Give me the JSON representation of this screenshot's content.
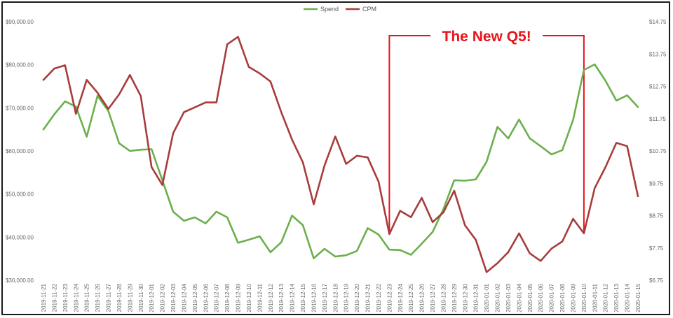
{
  "chart_data": {
    "type": "line",
    "title": "",
    "xlabel": "",
    "ylabel": "",
    "y2label": "",
    "legend_position": "top-center",
    "grid": false,
    "categories": [
      "2019-11-21",
      "2019-11-22",
      "2019-11-23",
      "2019-11-24",
      "2019-11-25",
      "2019-11-26",
      "2019-11-27",
      "2019-11-28",
      "2019-11-29",
      "2019-11-30",
      "2019-12-01",
      "2019-12-02",
      "2019-12-03",
      "2019-12-04",
      "2019-12-05",
      "2019-12-06",
      "2019-12-07",
      "2019-12-08",
      "2019-12-09",
      "2019-12-10",
      "2019-12-11",
      "2019-12-12",
      "2019-12-13",
      "2019-12-14",
      "2019-12-15",
      "2019-12-16",
      "2019-12-17",
      "2019-12-18",
      "2019-12-19",
      "2019-12-20",
      "2019-12-21",
      "2019-12-22",
      "2019-12-23",
      "2019-12-24",
      "2019-12-25",
      "2019-12-26",
      "2019-12-27",
      "2019-12-28",
      "2019-12-29",
      "2019-12-30",
      "2019-12-31",
      "2020-01-01",
      "2020-01-02",
      "2020-01-03",
      "2020-01-04",
      "2020-01-05",
      "2020-01-06",
      "2020-01-07",
      "2020-01-08",
      "2020-01-09",
      "2020-01-10",
      "2020-01-11",
      "2020-01-12",
      "2020-01-13",
      "2020-01-14",
      "2020-01-15"
    ],
    "y_left": {
      "ylim": [
        30000,
        90000
      ],
      "ticks": [
        30000,
        40000,
        50000,
        60000,
        70000,
        80000,
        90000
      ],
      "tick_labels": [
        "$30,000.00",
        "$40,000.00",
        "$50,000.00",
        "$60,000.00",
        "$70,000.00",
        "$80,000.00",
        "$90,000.00"
      ]
    },
    "y_right": {
      "ylim": [
        6.75,
        14.75
      ],
      "ticks": [
        6.75,
        7.75,
        8.75,
        9.75,
        10.75,
        11.75,
        12.75,
        13.75,
        14.75
      ],
      "tick_labels": [
        "$6.75",
        "$7.75",
        "$8.75",
        "$9.75",
        "$10.75",
        "$11.75",
        "$12.75",
        "$13.75",
        "$14.75"
      ]
    },
    "series": [
      {
        "name": "Spend",
        "color": "#6ab04c",
        "axis": "left",
        "values": [
          65000,
          68500,
          71500,
          70300,
          63300,
          72800,
          69300,
          61800,
          60000,
          60300,
          60400,
          53200,
          45900,
          43800,
          44600,
          43200,
          45900,
          44600,
          38700,
          39400,
          40200,
          36500,
          38800,
          45000,
          42800,
          35100,
          37300,
          35500,
          35800,
          36800,
          42100,
          40600,
          37100,
          37000,
          35900,
          38500,
          41200,
          46500,
          53200,
          53100,
          53400,
          57500,
          65600,
          62900,
          67300,
          62900,
          61100,
          59200,
          60200,
          67200,
          78800,
          80100,
          76300,
          71700,
          72900,
          70200
        ]
      },
      {
        "name": "CPM",
        "color": "#a83c3c",
        "axis": "right",
        "values": [
          12.95,
          13.3,
          13.4,
          11.9,
          12.95,
          12.55,
          12.05,
          12.5,
          13.1,
          12.45,
          10.25,
          9.7,
          11.3,
          11.95,
          12.1,
          12.25,
          12.25,
          14.05,
          14.28,
          13.35,
          13.15,
          12.9,
          11.95,
          11.1,
          10.4,
          9.1,
          10.3,
          11.2,
          10.35,
          10.6,
          10.55,
          9.8,
          8.18,
          8.9,
          8.7,
          9.3,
          8.55,
          8.85,
          9.52,
          8.45,
          8.0,
          7.0,
          7.28,
          7.62,
          8.2,
          7.58,
          7.35,
          7.73,
          7.95,
          8.65,
          8.2,
          9.6,
          10.25,
          11.0,
          10.9,
          9.35
        ]
      }
    ],
    "annotations": [
      {
        "text": "The New Q5!",
        "color": "#e8141c",
        "start": "2019-12-23",
        "end": "2020-01-10"
      }
    ]
  }
}
